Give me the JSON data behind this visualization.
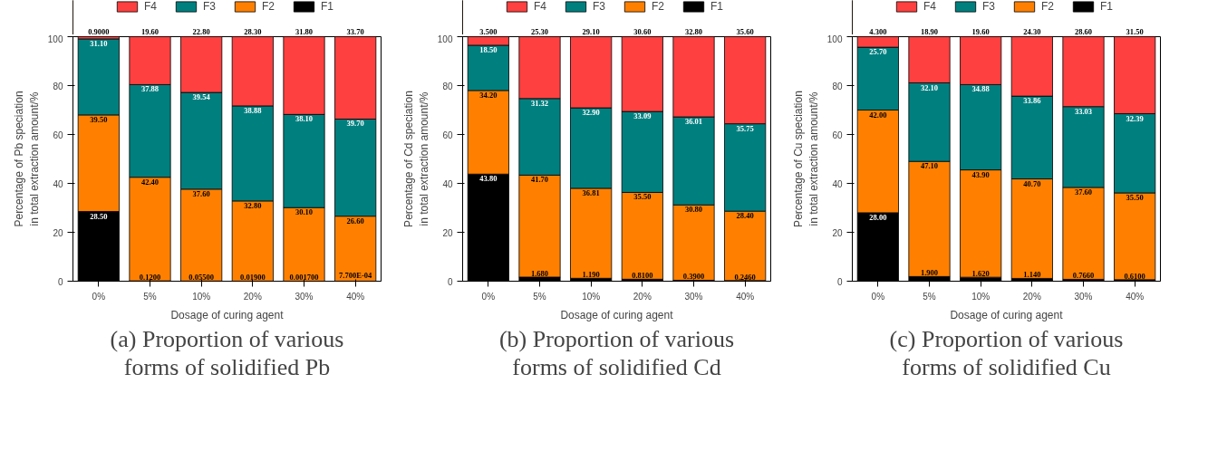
{
  "chart_data": [
    {
      "type": "bar",
      "stacked": true,
      "categories": [
        "0%",
        "5%",
        "10%",
        "20%",
        "30%",
        "40%"
      ],
      "xlabel": "Dosage of curing agent",
      "ylabel": "Percentage of Pb speciation\nin total extraction amount/%",
      "ylim": [
        0,
        100
      ],
      "yticks": [
        0,
        20,
        40,
        60,
        80,
        100
      ],
      "legend": "top",
      "grid": false,
      "annotations": [
        "(a) Proportion of various forms of solidified Pb"
      ],
      "series": [
        {
          "name": "F1",
          "color": "#000000",
          "values": [
            28.5,
            0.12,
            0.055,
            0.019,
            0.0017,
            0.00077
          ],
          "value_labels": [
            "28.50",
            "0.1200",
            "0.05500",
            "0.01900",
            "0.001700",
            "7.700E-04"
          ]
        },
        {
          "name": "F2",
          "color": "#ff8000",
          "values": [
            39.5,
            42.4,
            37.6,
            32.8,
            30.1,
            26.6
          ],
          "value_labels": [
            "39.50",
            "42.40",
            "37.60",
            "32.80",
            "30.10",
            "26.60"
          ]
        },
        {
          "name": "F3",
          "color": "#007f7f",
          "values": [
            31.1,
            37.88,
            39.54,
            38.88,
            38.1,
            39.7
          ],
          "value_labels": [
            "31.10",
            "37.88",
            "39.54",
            "38.88",
            "38.10",
            "39.70"
          ]
        },
        {
          "name": "F4",
          "color": "#ff4040",
          "values": [
            0.9,
            19.6,
            22.8,
            28.3,
            31.8,
            33.7
          ],
          "value_labels": [
            "0.9000",
            "19.60",
            "22.80",
            "28.30",
            "31.80",
            "33.70"
          ]
        }
      ]
    },
    {
      "type": "bar",
      "stacked": true,
      "categories": [
        "0%",
        "5%",
        "10%",
        "20%",
        "30%",
        "40%"
      ],
      "xlabel": "Dosage of curing agent",
      "ylabel": "Percentage of Cd speciation\nin total extraction amount/%",
      "ylim": [
        0,
        100
      ],
      "yticks": [
        0,
        20,
        40,
        60,
        80,
        100
      ],
      "legend": "top",
      "grid": false,
      "annotations": [
        "(b) Proportion of various forms of solidified Cd"
      ],
      "series": [
        {
          "name": "F1",
          "color": "#000000",
          "values": [
            43.8,
            1.68,
            1.19,
            0.81,
            0.39,
            0.246
          ],
          "value_labels": [
            "43.80",
            "1.680",
            "1.190",
            "0.8100",
            "0.3900",
            "0.2460"
          ]
        },
        {
          "name": "F2",
          "color": "#ff8000",
          "values": [
            34.2,
            41.7,
            36.81,
            35.5,
            30.8,
            28.4
          ],
          "value_labels": [
            "34.20",
            "41.70",
            "36.81",
            "35.50",
            "30.80",
            "28.40"
          ]
        },
        {
          "name": "F3",
          "color": "#007f7f",
          "values": [
            18.5,
            31.32,
            32.9,
            33.09,
            36.01,
            35.75
          ],
          "value_labels": [
            "18.50",
            "31.32",
            "32.90",
            "33.09",
            "36.01",
            "35.75"
          ]
        },
        {
          "name": "F4",
          "color": "#ff4040",
          "values": [
            3.5,
            25.3,
            29.1,
            30.6,
            32.8,
            35.6
          ],
          "value_labels": [
            "3.500",
            "25.30",
            "29.10",
            "30.60",
            "32.80",
            "35.60"
          ]
        }
      ]
    },
    {
      "type": "bar",
      "stacked": true,
      "categories": [
        "0%",
        "5%",
        "10%",
        "20%",
        "30%",
        "40%"
      ],
      "xlabel": "Dosage of curing agent",
      "ylabel": "Percentage of Cu speciation\nin total extraction amount/%",
      "ylim": [
        0,
        100
      ],
      "yticks": [
        0,
        20,
        40,
        60,
        80,
        100
      ],
      "legend": "top",
      "grid": false,
      "annotations": [
        "(c) Proportion of various forms of solidified Cu"
      ],
      "series": [
        {
          "name": "F1",
          "color": "#000000",
          "values": [
            28.0,
            1.9,
            1.62,
            1.14,
            0.766,
            0.61
          ],
          "value_labels": [
            "28.00",
            "1.900",
            "1.620",
            "1.140",
            "0.7660",
            "0.6100"
          ]
        },
        {
          "name": "F2",
          "color": "#ff8000",
          "values": [
            42.0,
            47.1,
            43.9,
            40.7,
            37.6,
            35.5
          ],
          "value_labels": [
            "42.00",
            "47.10",
            "43.90",
            "40.70",
            "37.60",
            "35.50"
          ]
        },
        {
          "name": "F3",
          "color": "#007f7f",
          "values": [
            25.7,
            32.1,
            34.88,
            33.86,
            33.03,
            32.39
          ],
          "value_labels": [
            "25.70",
            "32.10",
            "34.88",
            "33.86",
            "33.03",
            "32.39"
          ]
        },
        {
          "name": "F4",
          "color": "#ff4040",
          "values": [
            4.3,
            18.9,
            19.6,
            24.3,
            28.6,
            31.5
          ],
          "value_labels": [
            "4.300",
            "18.90",
            "19.60",
            "24.30",
            "28.60",
            "31.50"
          ]
        }
      ]
    }
  ]
}
